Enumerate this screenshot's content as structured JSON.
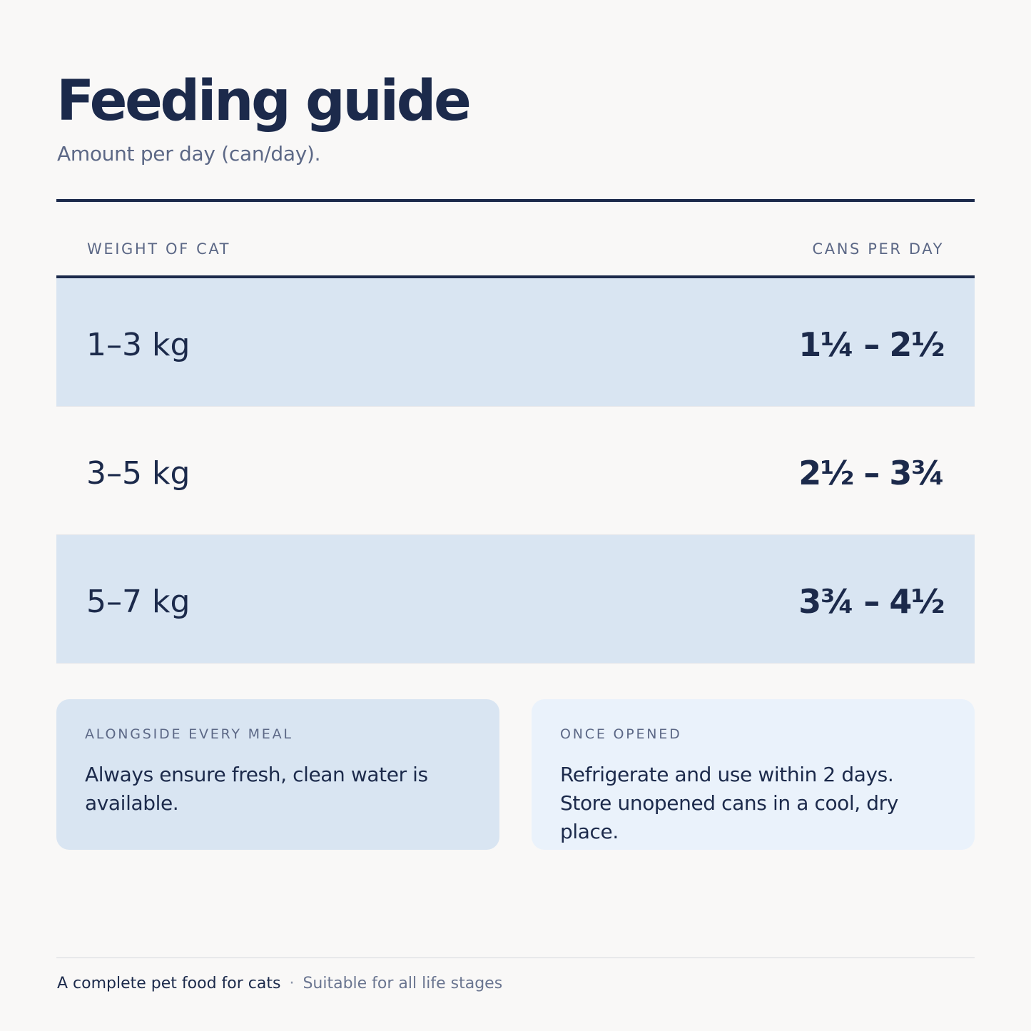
{
  "header": {
    "title": "Feeding guide",
    "subtitle": "Amount per day (can/day)."
  },
  "table": {
    "columns": {
      "weight": "WEIGHT OF CAT",
      "cans": "CANS PER DAY"
    },
    "rows": [
      {
        "weight": "1–3 kg",
        "cans": "1¼ – 2½"
      },
      {
        "weight": "3–5 kg",
        "cans": "2½ – 3¾"
      },
      {
        "weight": "5–7 kg",
        "cans": "3¾ – 4½"
      }
    ]
  },
  "cards": [
    {
      "label": "ALONGSIDE EVERY MEAL",
      "text": "Always ensure fresh, clean water is available."
    },
    {
      "label": "ONCE OPENED",
      "text": "Refrigerate and use within 2 days. Store unopened cans in a cool, dry place."
    }
  ],
  "footer": {
    "primary": "A complete pet food for cats",
    "separator": "·",
    "secondary": "Suitable for all life stages"
  },
  "colors": {
    "ink": "#1c2a4b",
    "muted": "#5c6886",
    "row_shade": "#d9e5f2",
    "card_light": "#eaf2fb",
    "background": "#f9f8f7"
  }
}
